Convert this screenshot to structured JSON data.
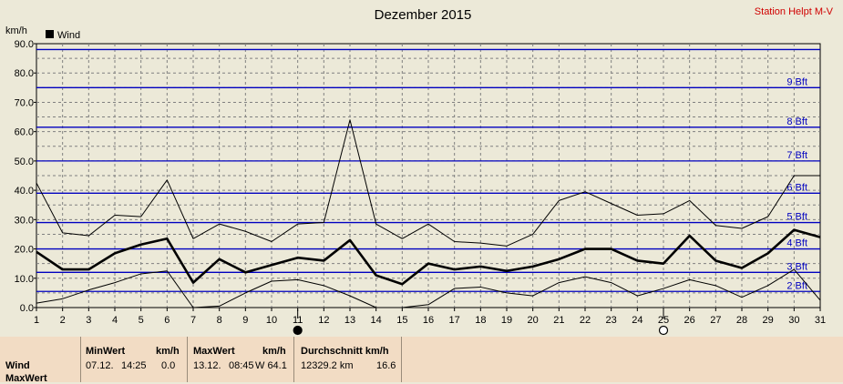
{
  "chart_data": {
    "type": "line",
    "title": "Dezember 2015",
    "station": "Station Helpt M-V",
    "ylabel": "km/h",
    "ylim": [
      0,
      90
    ],
    "yticks": [
      "0.0",
      "10.0",
      "20.0",
      "30.0",
      "40.0",
      "50.0",
      "60.0",
      "70.0",
      "80.0",
      "90.0"
    ],
    "x": [
      1,
      2,
      3,
      4,
      5,
      6,
      7,
      8,
      9,
      10,
      11,
      12,
      13,
      14,
      15,
      16,
      17,
      18,
      19,
      20,
      21,
      22,
      23,
      24,
      25,
      26,
      27,
      28,
      29,
      30,
      31
    ],
    "xticks": [
      "1",
      "2",
      "3",
      "4",
      "5",
      "6",
      "7",
      "8",
      "9",
      "10",
      "11",
      "12",
      "13",
      "14",
      "15",
      "16",
      "17",
      "18",
      "19",
      "20",
      "21",
      "22",
      "23",
      "24",
      "25",
      "26",
      "27",
      "28",
      "29",
      "30",
      "31"
    ],
    "legend": "Wind",
    "series": [
      {
        "role": "max",
        "values": [
          42.5,
          25.5,
          24.5,
          31.5,
          31.0,
          43.5,
          23.5,
          28.5,
          26.0,
          22.5,
          28.5,
          29.0,
          64.0,
          28.5,
          23.5,
          28.5,
          22.5,
          22.0,
          21.0,
          25.0,
          36.5,
          39.5,
          35.5,
          31.5,
          32.0,
          36.5,
          28.0,
          27.0,
          31.0,
          45.0,
          45.0
        ]
      },
      {
        "role": "avg",
        "values": [
          19.0,
          13.0,
          13.0,
          18.5,
          21.5,
          23.5,
          8.5,
          16.5,
          12.0,
          14.5,
          17.0,
          16.0,
          23.0,
          11.0,
          8.0,
          15.0,
          13.0,
          14.0,
          12.5,
          14.0,
          16.5,
          20.0,
          20.0,
          16.0,
          15.0,
          24.5,
          16.0,
          13.5,
          18.5,
          26.5,
          24.0
        ]
      },
      {
        "role": "min",
        "values": [
          1.5,
          3.0,
          6.0,
          8.5,
          11.5,
          12.5,
          0.0,
          0.5,
          5.0,
          9.0,
          9.5,
          7.5,
          4.0,
          0.0,
          0.0,
          1.0,
          6.5,
          7.0,
          5.0,
          4.0,
          8.5,
          10.5,
          8.5,
          4.0,
          6.5,
          9.5,
          7.5,
          3.5,
          7.5,
          13.0,
          2.5
        ]
      }
    ],
    "beaufort": [
      {
        "label": "2 Bft",
        "value": 5.5
      },
      {
        "label": "3 Bft",
        "value": 12.0
      },
      {
        "label": "4 Bft",
        "value": 20.0
      },
      {
        "label": "5 Bft",
        "value": 29.0
      },
      {
        "label": "6 Bft",
        "value": 39.0
      },
      {
        "label": "7 Bft",
        "value": 50.0
      },
      {
        "label": "8 Bft",
        "value": 61.5
      },
      {
        "label": "9 Bft",
        "value": 75.0
      },
      {
        "label": "",
        "value": 88.0
      }
    ],
    "moon": [
      {
        "phase": "new",
        "day": 11.0
      },
      {
        "phase": "full",
        "day": 25.0
      }
    ],
    "colors": {
      "grid": "#808080",
      "bft": "#0000C0",
      "bftText": "#0000C0",
      "title": "#000000",
      "station": "#D00000",
      "bg": "#ECE9D8"
    }
  },
  "footer": {
    "row_label": "Wind",
    "row_label2": "MaxWert",
    "min_header": "MinWert",
    "min_unit": "km/h",
    "min_date": "07.12.",
    "min_time": "14:25",
    "min_value": "0.0",
    "max_header": "MaxWert",
    "max_unit": "km/h",
    "max_date": "13.12.",
    "max_time": "08:45",
    "max_value": "W 64.1",
    "avg_header": "Durchschnitt km/h",
    "avg_distance": "12329.2 km",
    "avg_value": "16.6"
  }
}
